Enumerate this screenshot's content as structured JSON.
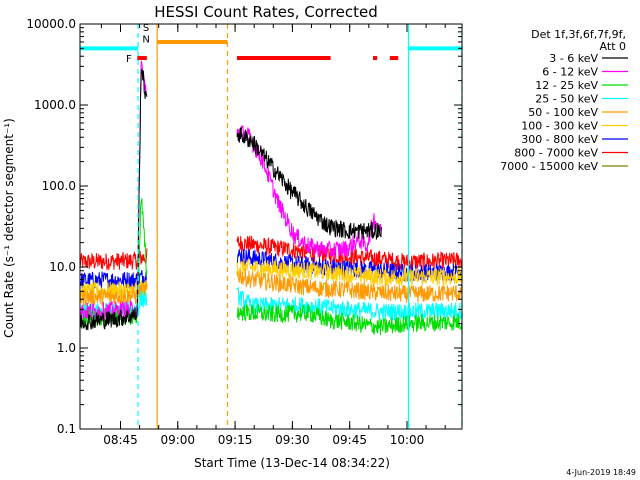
{
  "chart_data": {
    "type": "line",
    "title": "HESSI Count Rates, Corrected",
    "xlabel": "Start Time (13-Dec-14 08:34:22)",
    "ylabel": "Count Rate (s⁻¹ detector segment⁻¹)",
    "yscale": "log",
    "ylim": [
      0.1,
      10000
    ],
    "xlim_minutes": [
      0,
      100
    ],
    "x_ticks": [
      {
        "label": "08:45",
        "min": 10.6
      },
      {
        "label": "09:00",
        "min": 25.6
      },
      {
        "label": "09:15",
        "min": 40.6
      },
      {
        "label": "09:30",
        "min": 55.6
      },
      {
        "label": "09:45",
        "min": 70.6
      },
      {
        "label": "10:00",
        "min": 85.6
      }
    ],
    "y_ticks": [
      "0.1",
      "1.0",
      "10.0",
      "100.0",
      "1000.0",
      "10000.0"
    ],
    "legend_header": [
      "Det 1f,3f,6f,7f,9f,",
      "Att 0"
    ],
    "series": [
      {
        "name": "3 - 6 keV",
        "color": "#000000",
        "values": [
          [
            0,
            2.1
          ],
          [
            10,
            2.3
          ],
          [
            15,
            2.6
          ],
          [
            16,
            3200
          ],
          [
            18,
            700
          ],
          [
            41,
            450
          ],
          [
            45,
            360
          ],
          [
            50,
            180
          ],
          [
            55,
            90
          ],
          [
            60,
            50
          ],
          [
            65,
            32
          ],
          [
            70,
            28
          ],
          [
            75,
            28
          ],
          [
            79,
            28
          ]
        ]
      },
      {
        "name": "6 - 12 keV",
        "color": "#ff00ff",
        "values": [
          [
            0,
            2.8
          ],
          [
            15,
            3.0
          ],
          [
            16,
            3500
          ],
          [
            17.5,
            1200
          ],
          [
            41,
            480
          ],
          [
            44,
            420
          ],
          [
            48,
            200
          ],
          [
            52,
            60
          ],
          [
            56,
            25
          ],
          [
            60,
            18
          ],
          [
            65,
            16
          ],
          [
            70,
            17
          ],
          [
            73,
            22
          ],
          [
            75,
            18
          ],
          [
            77,
            40
          ],
          [
            79,
            25
          ]
        ]
      },
      {
        "name": "12 - 25 keV",
        "color": "#00dd00",
        "values": [
          [
            0,
            2.3
          ],
          [
            15,
            2.5
          ],
          [
            16,
            80
          ],
          [
            17.5,
            8
          ],
          [
            41,
            2.8
          ],
          [
            50,
            2.6
          ],
          [
            60,
            2.7
          ],
          [
            65,
            2.2
          ],
          [
            70,
            2.1
          ],
          [
            75,
            1.9
          ],
          [
            79,
            1.8
          ],
          [
            85,
            2.0
          ],
          [
            100,
            2.1
          ]
        ]
      },
      {
        "name": "25 - 50 keV",
        "color": "#00ffff",
        "values": [
          [
            0,
            2.7
          ],
          [
            15,
            3.0
          ],
          [
            16,
            4.0
          ],
          [
            41,
            4.5
          ],
          [
            45,
            3.3
          ],
          [
            50,
            3.3
          ],
          [
            55,
            3.4
          ],
          [
            60,
            3.3
          ],
          [
            70,
            3.0
          ],
          [
            79,
            2.8
          ],
          [
            85,
            2.8
          ],
          [
            100,
            2.9
          ]
        ]
      },
      {
        "name": "50 - 100 keV",
        "color": "#ff9900",
        "values": [
          [
            0,
            4.2
          ],
          [
            15,
            4.4
          ],
          [
            16,
            5.0
          ],
          [
            41,
            8.0
          ],
          [
            45,
            7.0
          ],
          [
            50,
            6.5
          ],
          [
            55,
            6.0
          ],
          [
            60,
            5.6
          ],
          [
            70,
            5.2
          ],
          [
            79,
            4.8
          ],
          [
            85,
            4.6
          ],
          [
            100,
            4.8
          ]
        ]
      },
      {
        "name": "100 - 300 keV",
        "color": "#ffcc00",
        "values": [
          [
            0,
            5.0
          ],
          [
            15,
            5.2
          ],
          [
            41,
            10.0
          ],
          [
            60,
            9.0
          ],
          [
            79,
            7.5
          ],
          [
            100,
            7.6
          ]
        ]
      },
      {
        "name": "300 - 800 keV",
        "color": "#0000ff",
        "values": [
          [
            0,
            6.8
          ],
          [
            15,
            7.0
          ],
          [
            16,
            7.5
          ],
          [
            41,
            14
          ],
          [
            45,
            13
          ],
          [
            50,
            12
          ],
          [
            55,
            11
          ],
          [
            60,
            10.5
          ],
          [
            70,
            9.6
          ],
          [
            79,
            9.0
          ],
          [
            85,
            8.5
          ],
          [
            100,
            8.7
          ]
        ]
      },
      {
        "name": "800 - 7000 keV",
        "color": "#ff0000",
        "values": [
          [
            0,
            11.5
          ],
          [
            15,
            12
          ],
          [
            16,
            13
          ],
          [
            41,
            20
          ],
          [
            45,
            19
          ],
          [
            50,
            17.5
          ],
          [
            55,
            16.5
          ],
          [
            60,
            15
          ],
          [
            70,
            13.5
          ],
          [
            79,
            12.5
          ],
          [
            85,
            11.5
          ],
          [
            100,
            12
          ]
        ]
      },
      {
        "name": "7000 - 15000 keV",
        "color": "#808000",
        "values": []
      }
    ],
    "markers": [
      {
        "type": "hline",
        "color": "#00ffff",
        "y": 5000,
        "from": 0,
        "to": 15.2
      },
      {
        "type": "hline",
        "color": "#00ffff",
        "y": 5000,
        "from": 86,
        "to": 100
      },
      {
        "type": "hline",
        "color": "#ff9900",
        "y": 6000,
        "from": 20.2,
        "to": 38.6
      },
      {
        "type": "hline",
        "color": "#ff0000",
        "y": 3800,
        "from": 15.0,
        "to": 17.5
      },
      {
        "type": "hline",
        "color": "#ff0000",
        "y": 3800,
        "from": 41.1,
        "to": 65.6
      },
      {
        "type": "hline",
        "color": "#ff0000",
        "y": 3800,
        "from": 76.7,
        "to": 77.8
      },
      {
        "type": "hline",
        "color": "#ff0000",
        "y": 3800,
        "from": 81.1,
        "to": 83.3
      },
      {
        "type": "vline",
        "color": "#00ffff",
        "dashed": true,
        "x": 15.2
      },
      {
        "type": "vline",
        "color": "#ff9900",
        "dashed": false,
        "x": 20.2
      },
      {
        "type": "vline",
        "color": "#ff9900",
        "dashed": true,
        "x": 38.6
      },
      {
        "type": "vline",
        "color": "#00ffff",
        "dashed": false,
        "x": 86.0
      },
      {
        "type": "vline",
        "color": "#00ffff",
        "dashed": true,
        "x": 100.0
      }
    ],
    "marker_labels": [
      {
        "text": "F",
        "color": "#ff0000",
        "x": 12.8,
        "y": 3800
      },
      {
        "text": "S",
        "color": "#ff9900",
        "x": 17.3,
        "y": 9200
      },
      {
        "text": "N",
        "color": "#00ffff",
        "x": 17.3,
        "y": 6600
      }
    ],
    "footer": "4-Jun-2019 18:49"
  }
}
